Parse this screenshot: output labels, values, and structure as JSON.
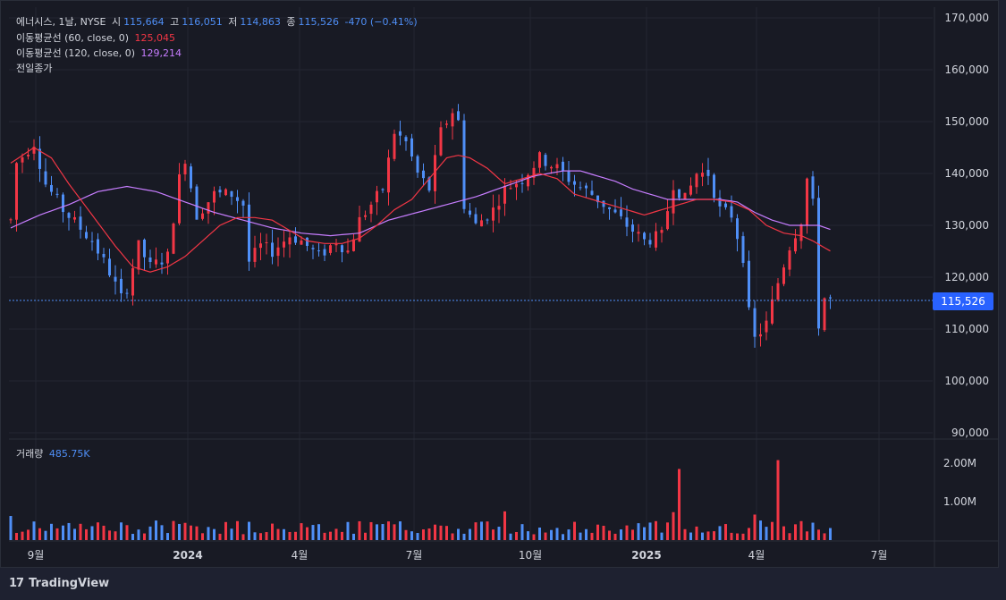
{
  "header": {
    "symbol_line": {
      "label": "에너시스, 1날, NYSE",
      "open_label": "시",
      "open": "115,664",
      "high_label": "고",
      "high": "116,051",
      "low_label": "저",
      "low": "114,863",
      "close_label": "종",
      "close": "115,526",
      "change": "-470 (−0.41%)"
    },
    "ma60": {
      "label": "이동평균선 (60, close, 0)",
      "value": "125,045"
    },
    "ma120": {
      "label": "이동평균선 (120, close, 0)",
      "value": "129,214"
    },
    "prev_close": "전일종가"
  },
  "volume_legend": {
    "label": "거래량",
    "value": "485.75K"
  },
  "current_price_tag": "115,526",
  "footer": {
    "logo": "17",
    "brand": "TradingView"
  },
  "colors": {
    "up": "#f23645",
    "down": "#4f8ff7",
    "ma60": "#f23645",
    "ma120": "#c77dff",
    "price_line": "#4f8ff7"
  },
  "chart_data": {
    "type": "candlestick",
    "title": "에너시스, 1날, NYSE",
    "y_axis": {
      "min": 90000,
      "max": 170000,
      "ticks": [
        "170,000",
        "160,000",
        "150,000",
        "140,000",
        "130,000",
        "120,000",
        "110,000",
        "100,000",
        "90,000"
      ]
    },
    "volume_axis": {
      "ticks": [
        "2.00M",
        "1.00M"
      ]
    },
    "x_axis": {
      "ticks": [
        "9월",
        "2024",
        "4월",
        "7월",
        "10월",
        "2025",
        "4월",
        "7월"
      ]
    },
    "current_price": 115526,
    "price_path": [
      [
        0,
        131000
      ],
      [
        1,
        142000
      ],
      [
        4,
        146000
      ],
      [
        6,
        138000
      ],
      [
        9,
        133000
      ],
      [
        14,
        127000
      ],
      [
        17,
        121000
      ],
      [
        19,
        116000
      ],
      [
        20,
        118000
      ],
      [
        22,
        126000
      ],
      [
        24,
        122000
      ],
      [
        27,
        124000
      ],
      [
        29,
        139000
      ],
      [
        30,
        143000
      ],
      [
        32,
        132000
      ],
      [
        35,
        136000
      ],
      [
        38,
        136000
      ],
      [
        40,
        134000
      ],
      [
        41,
        123000
      ],
      [
        43,
        126000
      ],
      [
        45,
        125000
      ],
      [
        48,
        128000
      ],
      [
        50,
        127000
      ],
      [
        53,
        124000
      ],
      [
        56,
        127000
      ],
      [
        58,
        125000
      ],
      [
        60,
        131000
      ],
      [
        62,
        134000
      ],
      [
        64,
        137000
      ],
      [
        66,
        148000
      ],
      [
        68,
        146000
      ],
      [
        70,
        140000
      ],
      [
        72,
        137000
      ],
      [
        74,
        148000
      ],
      [
        76,
        152000
      ],
      [
        77,
        150000
      ],
      [
        78,
        134000
      ],
      [
        80,
        130000
      ],
      [
        83,
        133000
      ],
      [
        85,
        137000
      ],
      [
        88,
        139000
      ],
      [
        91,
        143000
      ],
      [
        94,
        141000
      ],
      [
        97,
        138000
      ],
      [
        100,
        136000
      ],
      [
        103,
        133000
      ],
      [
        106,
        130000
      ],
      [
        109,
        127000
      ],
      [
        112,
        128000
      ],
      [
        114,
        138000
      ],
      [
        116,
        135000
      ],
      [
        118,
        140000
      ],
      [
        120,
        140000
      ],
      [
        122,
        133000
      ],
      [
        124,
        132000
      ],
      [
        126,
        124000
      ],
      [
        127,
        113000
      ],
      [
        128,
        108000
      ],
      [
        130,
        111000
      ],
      [
        132,
        119000
      ],
      [
        134,
        126000
      ],
      [
        136,
        131000
      ],
      [
        137,
        139000
      ],
      [
        138,
        134000
      ],
      [
        139,
        111000
      ],
      [
        140,
        116000
      ],
      [
        141,
        115526
      ]
    ],
    "ma60_path": [
      [
        0,
        142000
      ],
      [
        4,
        145000
      ],
      [
        7,
        143000
      ],
      [
        10,
        138000
      ],
      [
        14,
        132000
      ],
      [
        18,
        126000
      ],
      [
        21,
        122000
      ],
      [
        24,
        121000
      ],
      [
        27,
        122000
      ],
      [
        30,
        124000
      ],
      [
        33,
        127000
      ],
      [
        36,
        130000
      ],
      [
        39,
        131500
      ],
      [
        42,
        131500
      ],
      [
        45,
        131000
      ],
      [
        48,
        129000
      ],
      [
        51,
        127000
      ],
      [
        54,
        126500
      ],
      [
        57,
        126500
      ],
      [
        60,
        127500
      ],
      [
        63,
        130000
      ],
      [
        66,
        133000
      ],
      [
        69,
        135000
      ],
      [
        72,
        139000
      ],
      [
        75,
        143000
      ],
      [
        77,
        143500
      ],
      [
        79,
        143000
      ],
      [
        82,
        141000
      ],
      [
        85,
        138000
      ],
      [
        88,
        139000
      ],
      [
        91,
        140000
      ],
      [
        94,
        139000
      ],
      [
        97,
        136000
      ],
      [
        100,
        135000
      ],
      [
        103,
        134000
      ],
      [
        106,
        133000
      ],
      [
        109,
        132000
      ],
      [
        112,
        133000
      ],
      [
        115,
        134000
      ],
      [
        118,
        135000
      ],
      [
        121,
        135000
      ],
      [
        124,
        134500
      ],
      [
        127,
        133000
      ],
      [
        130,
        130000
      ],
      [
        133,
        128500
      ],
      [
        136,
        128000
      ],
      [
        138,
        127000
      ],
      [
        141,
        125045
      ]
    ],
    "ma120_path": [
      [
        0,
        129500
      ],
      [
        5,
        132000
      ],
      [
        10,
        134000
      ],
      [
        15,
        136500
      ],
      [
        20,
        137500
      ],
      [
        25,
        136500
      ],
      [
        30,
        134500
      ],
      [
        35,
        132500
      ],
      [
        40,
        131000
      ],
      [
        45,
        129500
      ],
      [
        50,
        128500
      ],
      [
        55,
        128000
      ],
      [
        60,
        128500
      ],
      [
        65,
        131000
      ],
      [
        70,
        132500
      ],
      [
        75,
        134000
      ],
      [
        80,
        135500
      ],
      [
        85,
        137500
      ],
      [
        90,
        139500
      ],
      [
        95,
        140500
      ],
      [
        98,
        140500
      ],
      [
        101,
        139500
      ],
      [
        104,
        138500
      ],
      [
        107,
        137000
      ],
      [
        110,
        136000
      ],
      [
        113,
        135000
      ],
      [
        116,
        135000
      ],
      [
        119,
        135000
      ],
      [
        122,
        135000
      ],
      [
        125,
        134500
      ],
      [
        128,
        132500
      ],
      [
        131,
        131000
      ],
      [
        134,
        130000
      ],
      [
        137,
        130000
      ],
      [
        139,
        130000
      ],
      [
        141,
        129214
      ]
    ],
    "volume_spikes": [
      [
        115,
        1850000
      ],
      [
        132,
        2080000
      ]
    ]
  }
}
